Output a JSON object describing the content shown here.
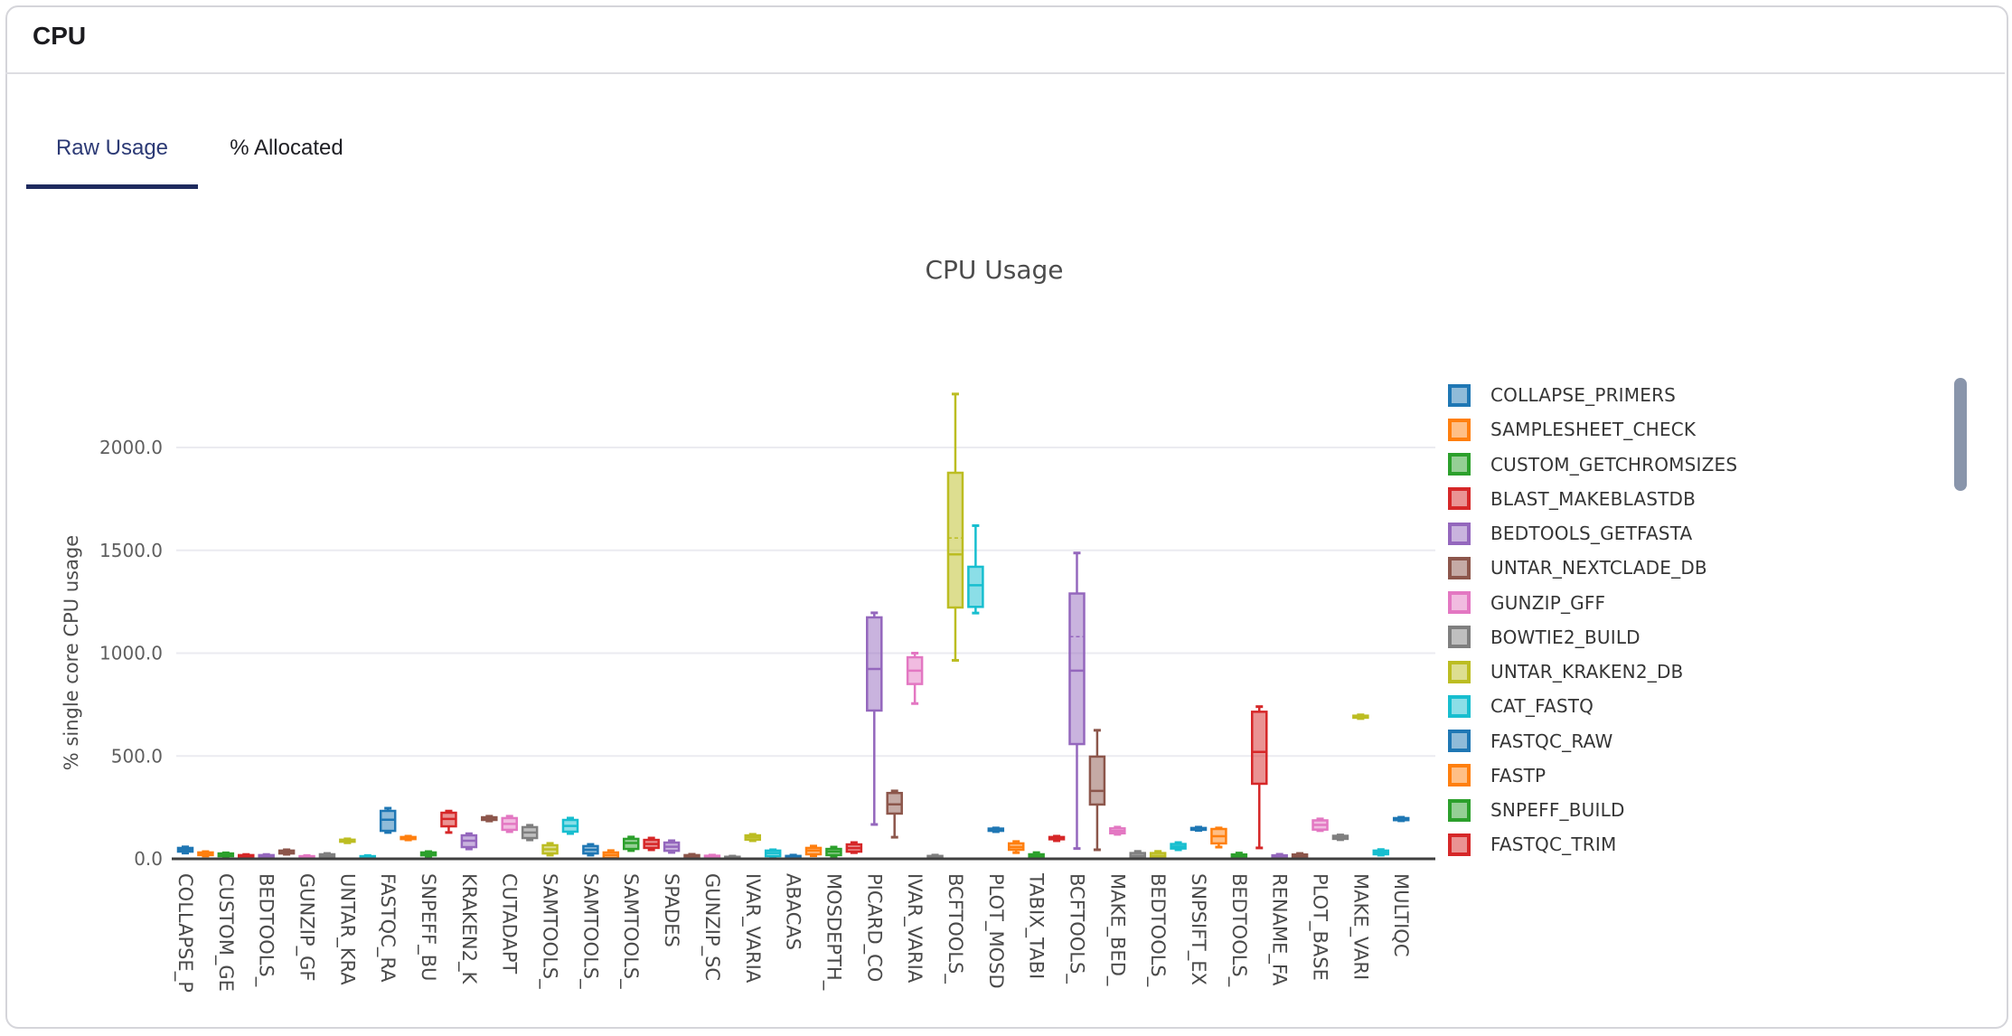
{
  "card": {
    "title": "CPU",
    "tabs": [
      {
        "label": "Raw Usage",
        "active": true
      },
      {
        "label": "% Allocated",
        "active": false
      }
    ]
  },
  "colors": {
    "palette": [
      "#1f77b4",
      "#ff7f0e",
      "#2ca02c",
      "#d62728",
      "#9467bd",
      "#8c564b",
      "#e377c2",
      "#7f7f7f",
      "#bcbd22",
      "#17becf"
    ],
    "active_tab": "#2c3a75",
    "tab_underline": "#1e2a5e",
    "grid": "#ebebf0",
    "axis_line": "#3f3f3f",
    "tick_text": "#5f5f5f",
    "title_text": "#4c4c4c",
    "scrollbar": "#8995ab"
  },
  "chart_data": {
    "type": "box",
    "title": "CPU Usage",
    "ylabel": "% single core CPU usage",
    "ylim": [
      0,
      2450
    ],
    "grid": true,
    "legend_position": "right",
    "yticks": [
      0,
      500,
      1000,
      1500,
      2000
    ],
    "ytick_labels": [
      "0.0",
      "500.0",
      "1000.0",
      "1500.0",
      "2000.0"
    ],
    "xtick_labels": [
      "COLLAPSE_P",
      "CUSTOM_GE",
      "BEDTOOLS_",
      "GUNZIP_GF",
      "UNTAR_KRA",
      "FASTQC_RA",
      "SNPEFF_BU",
      "KRAKEN2_K",
      "CUTADAPT",
      "SAMTOOLS_",
      "SAMTOOLS_",
      "SAMTOOLS_",
      "SPADES",
      "GUNZIP_SC",
      "IVAR_VARIA",
      "ABACAS",
      "MOSDEPTH_",
      "PICARD_CO",
      "IVAR_VARIA",
      "BCFTOOLS_",
      "PLOT_MOSD",
      "TABIX_TABI",
      "BCFTOOLS_",
      "MAKE_BED_",
      "BEDTOOLS_",
      "SNPSIFT_EX",
      "BEDTOOLS_",
      "RENAME_FA",
      "PLOT_BASE",
      "MAKE_VARI",
      "MULTIQC"
    ],
    "legend": [
      "COLLAPSE_PRIMERS",
      "SAMPLESHEET_CHECK",
      "CUSTOM_GETCHROMSIZES",
      "BLAST_MAKEBLASTDB",
      "BEDTOOLS_GETFASTA",
      "UNTAR_NEXTCLADE_DB",
      "GUNZIP_GFF",
      "BOWTIE2_BUILD",
      "UNTAR_KRAKEN2_DB",
      "CAT_FASTQ",
      "FASTQC_RAW",
      "FASTP",
      "SNPEFF_BUILD",
      "FASTQC_TRIM"
    ],
    "series_note": "each entry is [min, q1, median, q3, max] in % single-core CPU; color cycles palette by index",
    "series": [
      [
        28,
        35,
        44,
        53,
        58
      ],
      [
        14,
        18,
        25,
        31,
        35
      ],
      [
        10,
        13,
        20,
        26,
        29
      ],
      [
        6,
        9,
        13,
        18,
        21
      ],
      [
        6,
        9,
        13,
        18,
        21
      ],
      [
        22,
        26,
        33,
        40,
        44
      ],
      [
        2,
        4,
        9,
        13,
        16
      ],
      [
        5,
        9,
        15,
        22,
        26
      ],
      [
        78,
        83,
        88,
        93,
        97
      ],
      [
        0,
        2,
        7,
        13,
        16
      ],
      [
        128,
        136,
        190,
        233,
        246
      ],
      [
        92,
        96,
        101,
        106,
        110
      ],
      [
        13,
        17,
        25,
        31,
        35
      ],
      [
        128,
        158,
        194,
        224,
        232
      ],
      [
        48,
        57,
        88,
        114,
        122
      ],
      [
        184,
        189,
        195,
        202,
        207
      ],
      [
        132,
        141,
        170,
        198,
        207
      ],
      [
        92,
        101,
        128,
        154,
        163
      ],
      [
        18,
        26,
        46,
        66,
        75
      ],
      [
        123,
        132,
        160,
        189,
        198
      ],
      [
        18,
        26,
        44,
        62,
        70
      ],
      [
        0,
        4,
        18,
        31,
        40
      ],
      [
        40,
        48,
        77,
        97,
        106
      ],
      [
        44,
        53,
        72,
        92,
        101
      ],
      [
        31,
        39,
        59,
        79,
        88
      ],
      [
        0,
        3,
        10,
        18,
        22
      ],
      [
        0,
        2,
        8,
        15,
        18
      ],
      [
        0,
        1,
        5,
        10,
        13
      ],
      [
        88,
        93,
        105,
        114,
        119
      ],
      [
        9,
        13,
        28,
        40,
        44
      ],
      [
        0,
        2,
        8,
        14,
        18
      ],
      [
        15,
        22,
        40,
        53,
        62
      ],
      [
        13,
        18,
        35,
        48,
        57
      ],
      [
        30,
        35,
        52,
        70,
        79
      ],
      [
        167,
        721,
        923,
        1174,
        1196
      ],
      [
        105,
        220,
        265,
        320,
        330
      ],
      [
        755,
        850,
        915,
        980,
        1000
      ],
      [
        0,
        2,
        8,
        14,
        18
      ],
      [
        965,
        1222,
        1480,
        1877,
        2260
      ],
      [
        1195,
        1225,
        1330,
        1420,
        1620
      ],
      [
        132,
        136,
        141,
        147,
        150
      ],
      [
        30,
        44,
        57,
        75,
        84
      ],
      [
        0,
        4,
        12,
        22,
        30
      ],
      [
        88,
        95,
        100,
        106,
        110
      ],
      [
        50,
        558,
        915,
        1290,
        1487
      ],
      [
        44,
        264,
        330,
        497,
        625
      ],
      [
        119,
        124,
        135,
        148,
        154
      ],
      [
        0,
        4,
        15,
        28,
        36
      ],
      [
        0,
        4,
        15,
        28,
        36
      ],
      [
        44,
        50,
        60,
        72,
        79
      ],
      [
        138,
        141,
        145,
        150,
        154
      ],
      [
        57,
        75,
        110,
        145,
        150
      ],
      [
        0,
        3,
        12,
        21,
        28
      ],
      [
        53,
        365,
        520,
        715,
        740
      ],
      [
        0,
        3,
        10,
        17,
        22
      ],
      [
        0,
        4,
        12,
        21,
        26
      ],
      [
        137,
        142,
        165,
        187,
        194
      ],
      [
        93,
        97,
        105,
        112,
        116
      ],
      [
        682,
        686,
        691,
        696,
        700
      ],
      [
        18,
        22,
        30,
        40,
        45
      ],
      [
        185,
        188,
        193,
        198,
        202
      ]
    ],
    "means": {
      "38": 1560,
      "44": 1080
    }
  }
}
